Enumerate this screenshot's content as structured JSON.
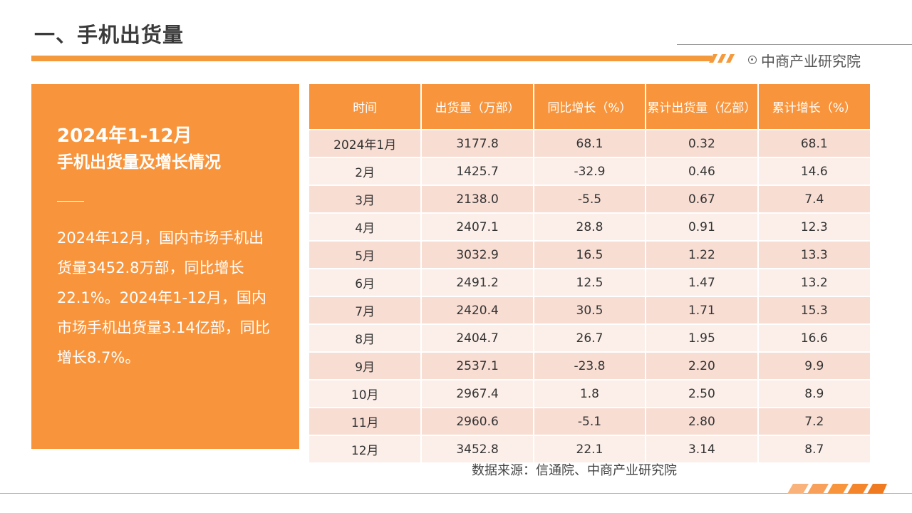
{
  "header": {
    "title": "一、手机出货量",
    "brand": "中商产业研究院",
    "accent_color": "#f49a3c",
    "brand_icon": "target-circle-icon"
  },
  "summary": {
    "title_line1": "2024年1-12月",
    "title_line2": "手机出货量及增长情况",
    "body": "2024年12月，国内市场手机出货量3452.8万部，同比增长22.1%。2024年1-12月，国内市场手机出货量3.14亿部，同比增长8.7%。",
    "background_color": "#f8953c"
  },
  "table": {
    "headers": [
      "时间",
      "出货量（万部）",
      "同比增长（%）",
      "累计出货量（亿部）",
      "累计增长（%）"
    ],
    "rows": [
      [
        "2024年1月",
        "3177.8",
        "68.1",
        "0.32",
        "68.1"
      ],
      [
        "2月",
        "1425.7",
        "-32.9",
        "0.46",
        "14.6"
      ],
      [
        "3月",
        "2138.0",
        "-5.5",
        "0.67",
        "7.4"
      ],
      [
        "4月",
        "2407.1",
        "28.8",
        "0.91",
        "12.3"
      ],
      [
        "5月",
        "3032.9",
        "16.5",
        "1.22",
        "13.3"
      ],
      [
        "6月",
        "2491.2",
        "12.5",
        "1.47",
        "13.2"
      ],
      [
        "7月",
        "2420.4",
        "30.5",
        "1.71",
        "15.3"
      ],
      [
        "8月",
        "2404.7",
        "26.7",
        "1.95",
        "16.6"
      ],
      [
        "9月",
        "2537.1",
        "-23.8",
        "2.20",
        "9.9"
      ],
      [
        "10月",
        "2967.4",
        "1.8",
        "2.50",
        "8.9"
      ],
      [
        "11月",
        "2960.6",
        "-5.1",
        "2.80",
        "7.2"
      ],
      [
        "12月",
        "3452.8",
        "22.1",
        "3.14",
        "8.7"
      ]
    ]
  },
  "footer": {
    "source": "数据来源：信通院、中商产业研究院"
  }
}
